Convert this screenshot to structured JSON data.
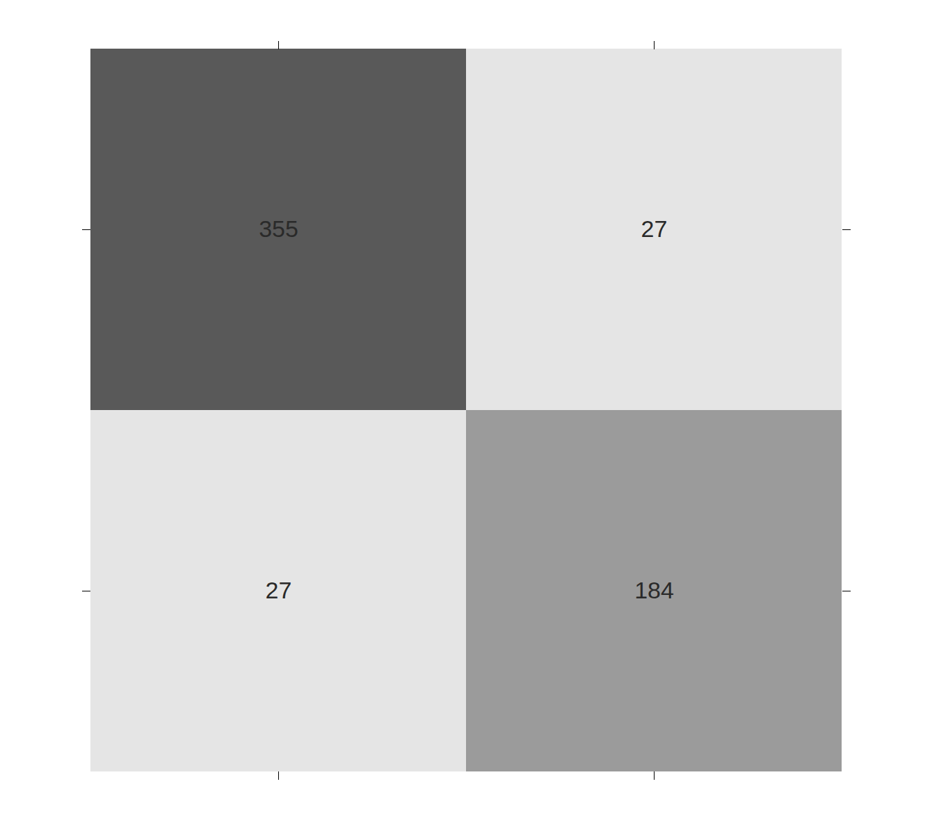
{
  "chart_data": {
    "type": "heatmap",
    "values": [
      [
        355,
        27
      ],
      [
        27,
        184
      ]
    ],
    "colors": [
      [
        "#595959",
        "#e5e5e5"
      ],
      [
        "#e5e5e5",
        "#9b9b9b"
      ]
    ],
    "data_labels": true,
    "tick_labels": false
  }
}
